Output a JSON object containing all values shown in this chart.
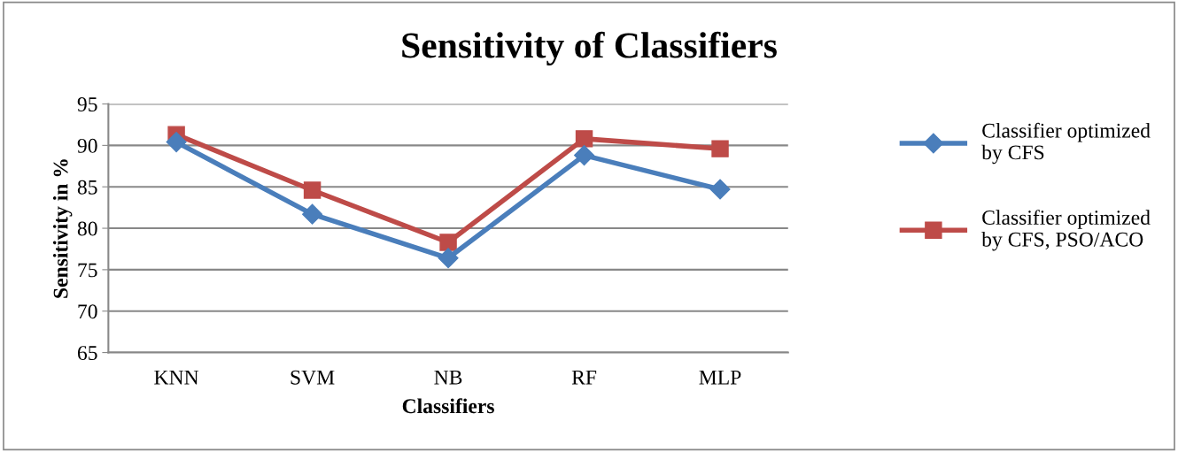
{
  "chart_data": {
    "type": "line",
    "title": "Sensitivity of Classifiers",
    "xlabel": "Classifiers",
    "ylabel": "Sensitivity in %",
    "categories": [
      "KNN",
      "SVM",
      "NB",
      "RF",
      "MLP"
    ],
    "series": [
      {
        "name": "Classifier optimized by CFS",
        "color": "#4a7ebb",
        "marker": "diamond",
        "values": [
          90.4,
          81.7,
          76.4,
          88.8,
          84.7
        ]
      },
      {
        "name": "Classifier optimized by CFS, PSO/ACO",
        "color": "#be4b48",
        "marker": "square",
        "values": [
          91.3,
          84.6,
          78.3,
          90.8,
          89.6
        ]
      }
    ],
    "ylim": [
      65,
      95
    ],
    "yticks": [
      65,
      70,
      75,
      80,
      85,
      90,
      95
    ],
    "grid": "y",
    "legend": "right",
    "line_style": "solid"
  }
}
